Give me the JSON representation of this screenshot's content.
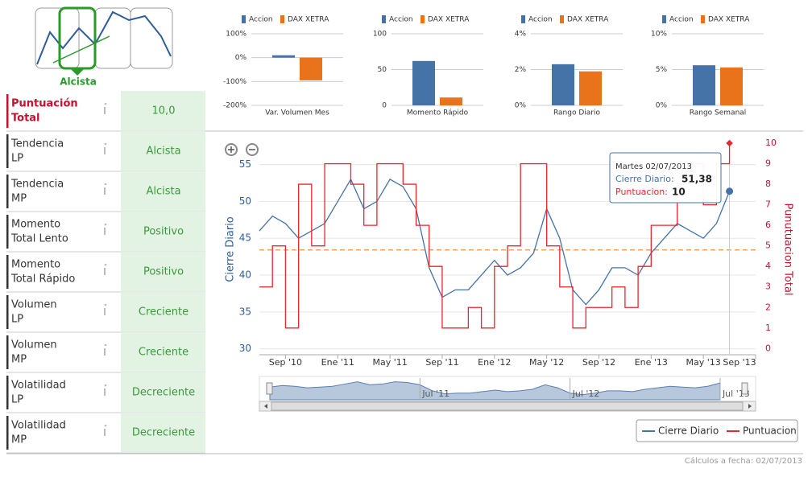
{
  "indicators": {
    "trend": "Alcista",
    "rows": [
      {
        "label": [
          "Puntuación",
          "Total"
        ],
        "value": "10,0"
      },
      {
        "label": [
          "Tendencia",
          "LP"
        ],
        "value": "Alcista"
      },
      {
        "label": [
          "Tendencia",
          "MP"
        ],
        "value": "Alcista"
      },
      {
        "label": [
          "Momento",
          "Total Lento"
        ],
        "value": "Positivo"
      },
      {
        "label": [
          "Momento",
          "Total Rápido"
        ],
        "value": "Positivo"
      },
      {
        "label": [
          "Volumen",
          "LP"
        ],
        "value": "Creciente"
      },
      {
        "label": [
          "Volumen",
          "MP"
        ],
        "value": "Creciente"
      },
      {
        "label": [
          "Volatilidad",
          "LP"
        ],
        "value": "Decreciente"
      },
      {
        "label": [
          "Volatilidad",
          "MP"
        ],
        "value": "Decreciente"
      }
    ]
  },
  "chart_data": [
    {
      "type": "bar",
      "categories": [
        "Var. Volumen Mes"
      ],
      "series": [
        {
          "name": "Accion",
          "color": "#4572a7",
          "values": [
            10
          ]
        },
        {
          "name": "DAX XETRA",
          "color": "#e8731b",
          "values": [
            -95
          ]
        }
      ],
      "ylim": [
        -200,
        100
      ],
      "yticks": [
        {
          "value": -200,
          "label": "-200%"
        },
        {
          "value": -100,
          "label": "-100%"
        },
        {
          "value": 0,
          "label": "0%"
        },
        {
          "value": 100,
          "label": "100%"
        }
      ],
      "grid": true
    },
    {
      "type": "bar",
      "categories": [
        "Momento Rápido"
      ],
      "series": [
        {
          "name": "Accion",
          "color": "#4572a7",
          "values": [
            62
          ]
        },
        {
          "name": "DAX XETRA",
          "color": "#e8731b",
          "values": [
            11
          ]
        }
      ],
      "ylim": [
        0,
        100
      ],
      "yticks": [
        0,
        50,
        100
      ],
      "grid": true
    },
    {
      "type": "bar",
      "categories": [
        "Rango Diario"
      ],
      "series": [
        {
          "name": "Accion",
          "color": "#4572a7",
          "values": [
            2.3
          ]
        },
        {
          "name": "DAX XETRA",
          "color": "#e8731b",
          "values": [
            1.9
          ]
        }
      ],
      "ylim": [
        0,
        4
      ],
      "yticks": [
        {
          "value": 0,
          "label": "0%"
        },
        {
          "value": 2,
          "label": "2%"
        },
        {
          "value": 4,
          "label": "4%"
        }
      ],
      "grid": true
    },
    {
      "type": "bar",
      "categories": [
        "Rango Semanal"
      ],
      "series": [
        {
          "name": "Accion",
          "color": "#4572a7",
          "values": [
            5.6
          ]
        },
        {
          "name": "DAX XETRA",
          "color": "#e8731b",
          "values": [
            5.3
          ]
        }
      ],
      "ylim": [
        0,
        10
      ],
      "yticks": [
        {
          "value": 0,
          "label": "0%"
        },
        {
          "value": 5,
          "label": "5%"
        },
        {
          "value": 10,
          "label": "10%"
        }
      ],
      "grid": true
    },
    {
      "type": "line",
      "x": [
        "2010-07",
        "2010-08",
        "2010-09",
        "2010-10",
        "2010-11",
        "2010-12",
        "2011-01",
        "2011-02",
        "2011-03",
        "2011-04",
        "2011-05",
        "2011-06",
        "2011-07",
        "2011-08",
        "2011-09",
        "2011-10",
        "2011-11",
        "2011-12",
        "2012-01",
        "2012-02",
        "2012-03",
        "2012-04",
        "2012-05",
        "2012-06",
        "2012-07",
        "2012-08",
        "2012-09",
        "2012-10",
        "2012-11",
        "2012-12",
        "2013-01",
        "2013-02",
        "2013-03",
        "2013-04",
        "2013-05",
        "2013-06",
        "2013-07"
      ],
      "series": [
        {
          "name": "Cierre Diario",
          "color": "#4572a7",
          "values": [
            46,
            48,
            47,
            45,
            46,
            47,
            50,
            53,
            49,
            50,
            53,
            52,
            49,
            41,
            37,
            38,
            38,
            40,
            42,
            40,
            41,
            43,
            49,
            45,
            38,
            36,
            38,
            41,
            41,
            40,
            43,
            45,
            47,
            46,
            45,
            47,
            51.38
          ]
        },
        {
          "name": "Puntuacion",
          "color": "#e8262e",
          "axis": "y2",
          "step": true,
          "values": [
            3,
            5,
            1,
            8,
            5,
            9,
            9,
            8,
            6,
            9,
            9,
            8,
            6,
            4,
            1,
            1,
            2,
            1,
            4,
            5,
            9,
            9,
            5,
            3,
            1,
            2,
            2,
            3,
            2,
            4,
            6,
            6,
            8,
            9,
            7,
            9,
            10
          ]
        }
      ],
      "xlim": [
        "2010-07",
        "2013-09"
      ],
      "xticks": [
        {
          "value": "2010-09",
          "label": "Sep '10"
        },
        {
          "value": "2011-01",
          "label": "Ene '11"
        },
        {
          "value": "2011-05",
          "label": "May '11"
        },
        {
          "value": "2011-09",
          "label": "Sep '11"
        },
        {
          "value": "2012-01",
          "label": "Ene '12"
        },
        {
          "value": "2012-05",
          "label": "May '12"
        },
        {
          "value": "2012-09",
          "label": "Sep '12"
        },
        {
          "value": "2013-01",
          "label": "Ene '13"
        },
        {
          "value": "2013-05",
          "label": "May '13"
        },
        {
          "value": "2013-09",
          "label": "Sep '13"
        }
      ],
      "ylim": [
        29.2,
        57.9
      ],
      "yticks": [
        30,
        35,
        40,
        45,
        50,
        55
      ],
      "y2lim": [
        -0.3,
        10
      ],
      "y2ticks": [
        0,
        1,
        2,
        3,
        4,
        5,
        6,
        7,
        8,
        9,
        10
      ],
      "y_label": "Cierre Diario",
      "y2_label": "Punutuacion Total",
      "reference_line": {
        "value": 4.8,
        "axis": "y2",
        "color": "#f4a460"
      },
      "grid": true,
      "tooltip": {
        "date": "Martes 02/07/2013",
        "rows": [
          {
            "label": "Cierre Diario:",
            "value": "51,38"
          },
          {
            "label": "Puntuacion:",
            "value": "10"
          }
        ]
      },
      "navigator": {
        "xticks": [
          {
            "value": "2011-07",
            "label": "Jul '11"
          },
          {
            "value": "2012-07",
            "label": "Jul '12"
          },
          {
            "value": "2013-07",
            "label": "Jul '13"
          }
        ]
      },
      "legend": "bottom-right"
    }
  ],
  "footer": "Cálculos a fecha: 02/07/2013"
}
